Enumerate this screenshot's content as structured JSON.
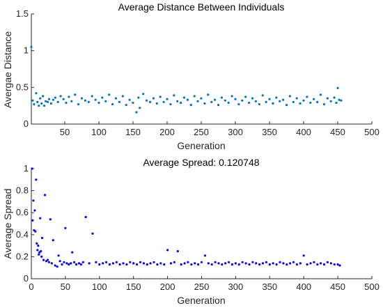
{
  "chart_data": [
    {
      "type": "scatter",
      "title": "Average Distance Between Individuals",
      "xlabel": "Generation",
      "ylabel": "Avergae Distance",
      "xlim": [
        1,
        500
      ],
      "ylim": [
        0,
        1.5
      ],
      "xticks": [
        "50",
        "100",
        "150",
        "200",
        "250",
        "300",
        "350",
        "400",
        "450",
        "500"
      ],
      "yticks": [
        "0",
        "0.5",
        "1",
        "1.5"
      ],
      "marker_color": "#0072BD",
      "grid": false,
      "series": [
        {
          "x": [
            1,
            3,
            5,
            8,
            10,
            12,
            14,
            16,
            18,
            20,
            22,
            25,
            27,
            30,
            33,
            36,
            40,
            44,
            48,
            52,
            56,
            60,
            65,
            70,
            75,
            80,
            85,
            90,
            95,
            100,
            105,
            110,
            115,
            120,
            125,
            130,
            135,
            140,
            145,
            150,
            155,
            158,
            160,
            165,
            170,
            175,
            180,
            185,
            190,
            195,
            200,
            205,
            210,
            215,
            220,
            225,
            230,
            235,
            240,
            245,
            250,
            255,
            260,
            265,
            270,
            275,
            280,
            285,
            290,
            295,
            300,
            305,
            310,
            315,
            320,
            325,
            330,
            335,
            340,
            345,
            350,
            355,
            360,
            365,
            370,
            375,
            380,
            385,
            390,
            395,
            400,
            405,
            410,
            415,
            420,
            425,
            430,
            435,
            440,
            445,
            448,
            450,
            452,
            455
          ],
          "y": [
            1.05,
            0.32,
            0.27,
            0.42,
            0.3,
            0.25,
            0.35,
            0.28,
            0.38,
            0.25,
            0.31,
            0.3,
            0.34,
            0.28,
            0.33,
            0.36,
            0.3,
            0.38,
            0.34,
            0.29,
            0.37,
            0.31,
            0.4,
            0.27,
            0.35,
            0.32,
            0.3,
            0.38,
            0.33,
            0.29,
            0.36,
            0.31,
            0.4,
            0.27,
            0.35,
            0.3,
            0.38,
            0.26,
            0.33,
            0.29,
            0.16,
            0.36,
            0.22,
            0.41,
            0.32,
            0.3,
            0.35,
            0.28,
            0.37,
            0.3,
            0.34,
            0.27,
            0.39,
            0.31,
            0.29,
            0.36,
            0.33,
            0.26,
            0.38,
            0.31,
            0.35,
            0.28,
            0.4,
            0.3,
            0.33,
            0.26,
            0.36,
            0.32,
            0.29,
            0.38,
            0.34,
            0.27,
            0.32,
            0.37,
            0.29,
            0.35,
            0.31,
            0.27,
            0.39,
            0.3,
            0.34,
            0.28,
            0.36,
            0.31,
            0.33,
            0.26,
            0.38,
            0.3,
            0.35,
            0.28,
            0.32,
            0.37,
            0.29,
            0.34,
            0.3,
            0.4,
            0.27,
            0.35,
            0.31,
            0.36,
            0.29,
            0.49,
            0.33,
            0.32
          ]
        }
      ]
    },
    {
      "type": "scatter",
      "title": "Average Spread: 0.120748",
      "xlabel": "Generation",
      "ylabel": "Average Spread",
      "xlim": [
        0,
        500
      ],
      "ylim": [
        0,
        1
      ],
      "xticks": [
        "0",
        "50",
        "100",
        "150",
        "200",
        "250",
        "300",
        "350",
        "400",
        "450",
        "500"
      ],
      "yticks": [
        "0",
        "0.2",
        "0.4",
        "0.6",
        "0.8",
        "1"
      ],
      "marker_color": "#0000FF",
      "grid": false,
      "series": [
        {
          "x": [
            1,
            2,
            3,
            4,
            5,
            6,
            7,
            8,
            9,
            10,
            11,
            12,
            13,
            14,
            15,
            16,
            18,
            20,
            22,
            24,
            26,
            28,
            30,
            32,
            35,
            38,
            40,
            42,
            45,
            48,
            50,
            52,
            55,
            58,
            60,
            63,
            66,
            70,
            73,
            76,
            80,
            85,
            90,
            95,
            100,
            105,
            110,
            115,
            120,
            125,
            130,
            135,
            140,
            145,
            150,
            155,
            160,
            165,
            170,
            175,
            180,
            185,
            190,
            195,
            200,
            205,
            210,
            215,
            220,
            225,
            230,
            235,
            240,
            245,
            250,
            255,
            260,
            265,
            270,
            275,
            280,
            285,
            290,
            295,
            300,
            305,
            310,
            315,
            320,
            325,
            330,
            335,
            340,
            345,
            350,
            355,
            360,
            365,
            370,
            375,
            380,
            385,
            390,
            395,
            400,
            405,
            410,
            415,
            420,
            425,
            430,
            435,
            440,
            445,
            450,
            453
          ],
          "y": [
            1.0,
            0.53,
            0.71,
            0.44,
            0.62,
            0.43,
            0.9,
            0.32,
            0.26,
            0.3,
            0.22,
            0.24,
            0.55,
            0.25,
            0.2,
            0.37,
            0.17,
            0.76,
            0.16,
            0.17,
            0.15,
            0.54,
            0.14,
            0.35,
            0.12,
            0.11,
            0.21,
            0.16,
            0.13,
            0.15,
            0.46,
            0.14,
            0.13,
            0.14,
            0.24,
            0.15,
            0.13,
            0.14,
            0.13,
            0.15,
            0.56,
            0.14,
            0.41,
            0.15,
            0.13,
            0.14,
            0.15,
            0.13,
            0.14,
            0.15,
            0.13,
            0.14,
            0.13,
            0.15,
            0.14,
            0.13,
            0.15,
            0.14,
            0.13,
            0.14,
            0.15,
            0.13,
            0.14,
            0.13,
            0.26,
            0.14,
            0.15,
            0.25,
            0.13,
            0.14,
            0.15,
            0.13,
            0.14,
            0.13,
            0.15,
            0.21,
            0.14,
            0.13,
            0.15,
            0.14,
            0.13,
            0.14,
            0.15,
            0.13,
            0.14,
            0.13,
            0.15,
            0.14,
            0.13,
            0.15,
            0.14,
            0.13,
            0.14,
            0.15,
            0.13,
            0.14,
            0.13,
            0.15,
            0.14,
            0.13,
            0.14,
            0.15,
            0.13,
            0.14,
            0.21,
            0.13,
            0.14,
            0.15,
            0.13,
            0.14,
            0.13,
            0.15,
            0.14,
            0.13,
            0.13,
            0.12
          ]
        }
      ]
    }
  ]
}
